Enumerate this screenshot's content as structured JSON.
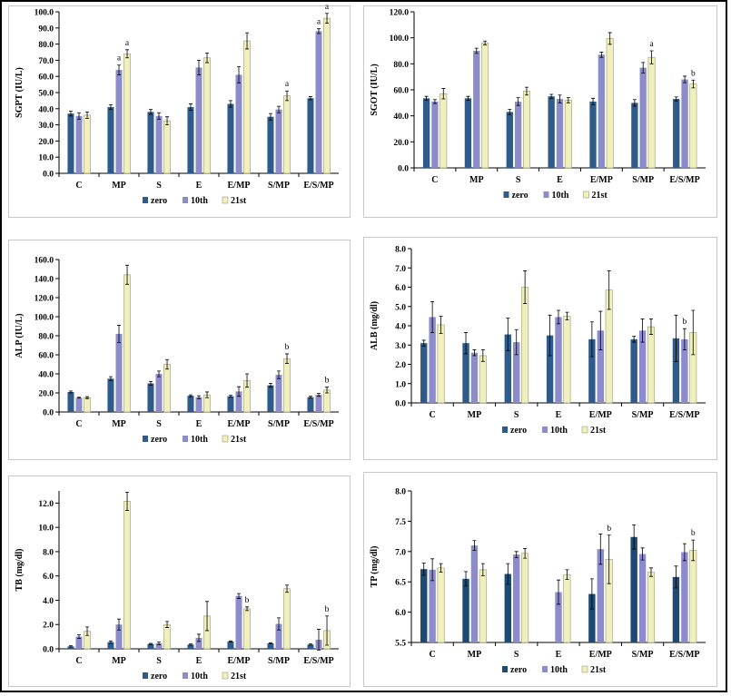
{
  "colors": {
    "zero": "#2f5b8a",
    "10th": "#8c8ccc",
    "21st": "#f0efbe",
    "zero_dark": "#1d4a73"
  },
  "categories": [
    "C",
    "MP",
    "S",
    "E",
    "E/MP",
    "S/MP",
    "E/S/MP"
  ],
  "legend": [
    "zero",
    "10th",
    "21st"
  ],
  "chart_data": [
    {
      "id": "sgpt",
      "type": "bar",
      "ylabel": "SGPT (IU/L)",
      "ylim": [
        0,
        100
      ],
      "ystep": 10,
      "decimals": 1,
      "categories": [
        "C",
        "MP",
        "S",
        "E",
        "E/MP",
        "S/MP",
        "E/S/MP"
      ],
      "series": [
        {
          "name": "zero",
          "values": [
            37,
            41,
            38,
            41,
            43,
            35,
            46.5
          ],
          "errors": [
            1.5,
            1.5,
            1.5,
            2,
            2,
            2,
            1
          ]
        },
        {
          "name": "10th",
          "values": [
            35.5,
            64,
            35.5,
            65.5,
            61,
            39.5,
            88
          ],
          "errors": [
            2,
            3,
            2,
            4.5,
            5,
            2,
            1.5
          ]
        },
        {
          "name": "21st",
          "values": [
            36,
            74,
            32.5,
            71.5,
            82,
            48,
            96
          ],
          "errors": [
            2,
            2.5,
            2.5,
            3,
            5,
            3,
            3
          ]
        }
      ],
      "annotations": [
        {
          "category": "MP",
          "series": "10th",
          "text": "a"
        },
        {
          "category": "MP",
          "series": "21st",
          "text": "a"
        },
        {
          "category": "S/MP",
          "series": "21st",
          "text": "a"
        },
        {
          "category": "E/S/MP",
          "series": "10th",
          "text": "a"
        },
        {
          "category": "E/S/MP",
          "series": "21st",
          "text": "a"
        }
      ]
    },
    {
      "id": "sgot",
      "type": "bar",
      "ylabel": "SGOT (IU/L)",
      "ylim": [
        0,
        120
      ],
      "ystep": 20,
      "decimals": 1,
      "categories": [
        "C",
        "MP",
        "S",
        "E",
        "E/MP",
        "S/MP",
        "E/S/MP"
      ],
      "series": [
        {
          "name": "zero",
          "values": [
            53.5,
            53.5,
            43,
            55,
            51,
            50,
            53
          ],
          "errors": [
            1.5,
            1.5,
            2,
            1.5,
            2.5,
            2.5,
            1.5
          ]
        },
        {
          "name": "10th",
          "values": [
            51,
            90,
            51,
            53,
            87,
            77,
            68
          ],
          "errors": [
            1.5,
            2,
            3,
            3,
            2,
            4,
            2.5
          ]
        },
        {
          "name": "21st",
          "values": [
            57,
            96,
            59,
            52,
            99.5,
            85,
            64.5
          ],
          "errors": [
            4,
            1.5,
            3,
            2,
            4.5,
            5,
            3
          ]
        }
      ],
      "annotations": [
        {
          "category": "S/MP",
          "series": "21st",
          "text": "a"
        },
        {
          "category": "E/S/MP",
          "series": "21st",
          "text": "b"
        }
      ]
    },
    {
      "id": "alp",
      "type": "bar",
      "ylabel": "ALP (IU/L)",
      "ylim": [
        0,
        160
      ],
      "ystep": 20,
      "decimals": 1,
      "categories": [
        "C",
        "MP",
        "S",
        "E",
        "E/MP",
        "S/MP",
        "E/S/MP"
      ],
      "series": [
        {
          "name": "zero",
          "values": [
            21,
            35,
            30,
            17,
            16.5,
            28,
            15.5
          ],
          "errors": [
            1,
            2,
            2,
            1,
            1,
            2,
            1
          ]
        },
        {
          "name": "10th",
          "values": [
            15,
            82,
            40,
            15.5,
            21.5,
            39,
            18
          ],
          "errors": [
            0.5,
            9,
            3,
            1.5,
            5,
            4,
            1.5
          ]
        },
        {
          "name": "21st",
          "values": [
            15,
            144,
            50,
            18,
            33,
            56,
            23
          ],
          "errors": [
            1,
            10,
            5,
            3,
            7,
            5,
            3
          ]
        }
      ],
      "annotations": [
        {
          "category": "S/MP",
          "series": "21st",
          "text": "b"
        },
        {
          "category": "E/S/MP",
          "series": "21st",
          "text": "b"
        }
      ]
    },
    {
      "id": "alb",
      "type": "bar",
      "ylabel": "ALB (mg/dl)",
      "ylim": [
        0,
        8
      ],
      "ystep": 1,
      "decimals": 1,
      "categories": [
        "C",
        "MP",
        "S",
        "E",
        "E/MP",
        "S/MP",
        "E/S/MP"
      ],
      "series": [
        {
          "name": "zero",
          "values": [
            3.1,
            3.1,
            3.55,
            3.5,
            3.3,
            3.3,
            3.35
          ],
          "errors": [
            0.15,
            0.55,
            0.85,
            1.05,
            0.9,
            0.15,
            1.2
          ]
        },
        {
          "name": "10th",
          "values": [
            4.45,
            2.6,
            3.15,
            4.45,
            3.75,
            3.75,
            3.3
          ],
          "errors": [
            0.8,
            0.15,
            0.65,
            0.35,
            1,
            0.6,
            0.55
          ]
        },
        {
          "name": "21st",
          "values": [
            4.05,
            2.45,
            6.0,
            4.5,
            5.85,
            3.95,
            3.65
          ],
          "errors": [
            0.45,
            0.3,
            0.85,
            0.2,
            1,
            0.4,
            1.15
          ]
        }
      ],
      "annotations": [
        {
          "category": "E/S/MP",
          "series": "10th",
          "text": "b"
        }
      ]
    },
    {
      "id": "tb",
      "type": "bar",
      "ylabel": "TB (mg/dl)",
      "ylim": [
        0,
        13
      ],
      "yticks": [
        0,
        2,
        4,
        6,
        8,
        10,
        12
      ],
      "decimals": 1,
      "categories": [
        "C",
        "MP",
        "S",
        "E",
        "E/MP",
        "S/MP",
        "E/S/MP"
      ],
      "series": [
        {
          "name": "zero",
          "values": [
            0.2,
            0.55,
            0.4,
            0.35,
            0.6,
            0.45,
            0.35
          ],
          "errors": [
            0.05,
            0.1,
            0.05,
            0.05,
            0.05,
            0.05,
            0.05
          ]
        },
        {
          "name": "10th",
          "values": [
            1.0,
            2.0,
            0.45,
            0.9,
            4.35,
            2.05,
            0.75
          ],
          "errors": [
            0.15,
            0.45,
            0.1,
            0.3,
            0.2,
            0.5,
            0.85
          ]
        },
        {
          "name": "21st",
          "values": [
            1.45,
            12.15,
            2.0,
            2.7,
            3.3,
            4.95,
            1.5
          ],
          "errors": [
            0.35,
            0.75,
            0.25,
            1.2,
            0.15,
            0.3,
            1.2
          ]
        }
      ],
      "annotations": [
        {
          "category": "E/MP",
          "series": "21st",
          "text": "b"
        },
        {
          "category": "E/S/MP",
          "series": "21st",
          "text": "b"
        }
      ]
    },
    {
      "id": "tp",
      "type": "bar",
      "ylabel": "TP (mg/dl)",
      "ylim": [
        5.5,
        8.0
      ],
      "ystep": 0.5,
      "decimals": 1,
      "categories": [
        "C",
        "MP",
        "S",
        "E",
        "E/MP",
        "S/MP",
        "E/S/MP"
      ],
      "series": [
        {
          "name": "zero",
          "values": [
            6.71,
            6.55,
            6.63,
            null,
            6.3,
            7.24,
            6.58
          ],
          "errors": [
            0.1,
            0.12,
            0.17,
            0,
            0.25,
            0.2,
            0.18
          ]
        },
        {
          "name": "10th",
          "values": [
            6.7,
            7.1,
            6.95,
            6.33,
            7.04,
            6.96,
            6.99
          ],
          "errors": [
            0.18,
            0.08,
            0.05,
            0.2,
            0.25,
            0.1,
            0.14
          ]
        },
        {
          "name": "21st",
          "values": [
            6.73,
            6.7,
            6.97,
            6.62,
            6.87,
            6.66,
            7.02
          ],
          "errors": [
            0.07,
            0.1,
            0.08,
            0.08,
            0.4,
            0.07,
            0.17
          ]
        }
      ],
      "annotations": [
        {
          "category": "E/MP",
          "series": "21st",
          "text": "b"
        },
        {
          "category": "E/S/MP",
          "series": "21st",
          "text": "b"
        }
      ]
    }
  ]
}
